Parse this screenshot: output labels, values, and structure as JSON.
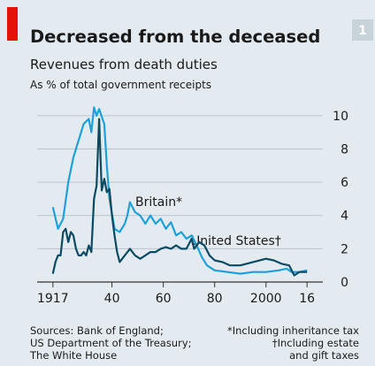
{
  "chart_data": {
    "type": "line",
    "number": "1",
    "title": "Decreased from the deceased",
    "subtitle": "Revenues from death duties",
    "unit_note": "As % of total government receipts",
    "annotations": [
      "Britain*",
      "United States†"
    ],
    "sources": [
      "Sources: Bank of England;",
      "US Department of the Treasury;",
      "The White House"
    ],
    "footnotes": [
      "*Including inheritance tax",
      "†Including estate",
      "and gift taxes"
    ],
    "xlim": [
      1915,
      2018
    ],
    "xticks": [
      1917,
      {
        "value": 1940,
        "label": "40"
      },
      {
        "value": 1960,
        "label": "60"
      },
      {
        "value": 1980,
        "label": "80"
      },
      2000,
      {
        "value": 2016,
        "label": "16"
      }
    ],
    "ylim": [
      0,
      11
    ],
    "yticks": [
      0,
      2,
      4,
      6,
      8,
      10
    ],
    "grid": true,
    "series": [
      {
        "name": "Britain*",
        "color": "#1ea0d9",
        "x": [
          1917,
          1919,
          1921,
          1923,
          1925,
          1927,
          1929,
          1931,
          1932,
          1933,
          1934,
          1935,
          1937,
          1938,
          1939,
          1941,
          1943,
          1945,
          1946,
          1947,
          1949,
          1951,
          1953,
          1955,
          1957,
          1959,
          1961,
          1963,
          1965,
          1967,
          1969,
          1971,
          1973,
          1975,
          1977,
          1980,
          1985,
          1990,
          1995,
          2000,
          2005,
          2008,
          2010,
          2013,
          2016
        ],
        "values": [
          4.5,
          3.2,
          3.8,
          6,
          7.5,
          8.5,
          9.5,
          9.8,
          9,
          10.5,
          10,
          10.4,
          9.5,
          7,
          5,
          3.2,
          3,
          3.5,
          4,
          4.8,
          4.2,
          4,
          3.5,
          4,
          3.5,
          3.8,
          3.2,
          3.6,
          2.8,
          3,
          2.6,
          2.8,
          2.2,
          1.5,
          1,
          0.7,
          0.6,
          0.5,
          0.6,
          0.6,
          0.7,
          0.8,
          0.6,
          0.6,
          0.7
        ]
      },
      {
        "name": "United States†",
        "color": "#0b4a63",
        "x": [
          1917,
          1918,
          1919,
          1920,
          1921,
          1922,
          1923,
          1924,
          1925,
          1926,
          1927,
          1928,
          1929,
          1930,
          1931,
          1932,
          1933,
          1934,
          1935,
          1936,
          1937,
          1938,
          1939,
          1940,
          1941,
          1942,
          1943,
          1945,
          1947,
          1949,
          1951,
          1953,
          1955,
          1957,
          1959,
          1961,
          1963,
          1965,
          1967,
          1969,
          1971,
          1972,
          1974,
          1976,
          1978,
          1980,
          1983,
          1986,
          1990,
          1995,
          2000,
          2003,
          2006,
          2009,
          2011,
          2013,
          2016
        ],
        "values": [
          0.5,
          1.2,
          1.6,
          1.6,
          3,
          3.2,
          2.4,
          3,
          2.8,
          2,
          1.6,
          1.6,
          1.8,
          1.6,
          2.2,
          1.8,
          5,
          5.8,
          9.8,
          5.5,
          6.2,
          5.4,
          5.6,
          4,
          2.8,
          1.8,
          1.2,
          1.6,
          2,
          1.6,
          1.4,
          1.6,
          1.8,
          1.8,
          2,
          2.1,
          2,
          2.2,
          2,
          2,
          2.6,
          2,
          2.4,
          2.2,
          1.6,
          1.3,
          1.2,
          1,
          1,
          1.2,
          1.4,
          1.3,
          1.1,
          1,
          0.4,
          0.6,
          0.6
        ]
      }
    ]
  }
}
